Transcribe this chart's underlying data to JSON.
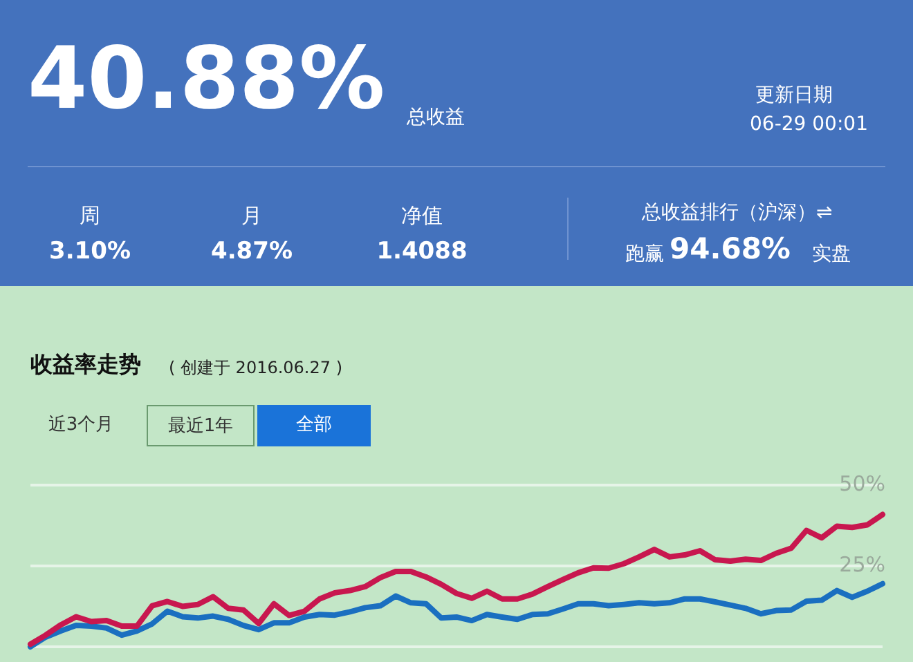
{
  "chart_data": {
    "type": "line",
    "title": "收益率走势",
    "subtitle": "( 创建于 2016.06.27 )",
    "annotations": [
      "40.88%",
      "总收益",
      "更新日期",
      "06-29 00:01",
      "周",
      "3.10%",
      "月",
      "4.87%",
      "净值",
      "1.4088",
      "总收益排行（沪深）⇌",
      "跑赢",
      "94.68%",
      "实盘",
      "近3个月",
      "最近1年",
      "全部"
    ],
    "categories": [
      null,
      null,
      null,
      null,
      null,
      null,
      null,
      null,
      null,
      null,
      null,
      null,
      null,
      null,
      null,
      null,
      null,
      null,
      null,
      null,
      null,
      null,
      null,
      null,
      null,
      null,
      null,
      null,
      null,
      null,
      null,
      null,
      null,
      null,
      null,
      null,
      null,
      null,
      null,
      null,
      null,
      null,
      null,
      null,
      null,
      null,
      null,
      null,
      null,
      null,
      null,
      null,
      null,
      null,
      null,
      null,
      null
    ],
    "series": [
      {
        "color": "#c8174f",
        "values": [
          0.8,
          3.6,
          6.8,
          9.3,
          7.8,
          8.1,
          6.4,
          6.4,
          12.7,
          14.0,
          12.5,
          13.1,
          15.5,
          11.9,
          11.4,
          7.2,
          13.3,
          9.7,
          11.0,
          14.8,
          16.7,
          17.4,
          18.6,
          21.4,
          23.3,
          23.3,
          21.6,
          19.3,
          16.5,
          15.0,
          17.2,
          14.8,
          14.8,
          16.3,
          18.6,
          20.8,
          22.9,
          24.4,
          24.3,
          25.7,
          27.8,
          30.1,
          27.8,
          28.4,
          29.7,
          26.9,
          26.5,
          27.1,
          26.7,
          28.9,
          30.5,
          36.0,
          33.7,
          37.3,
          36.9,
          37.7,
          40.9
        ]
      },
      {
        "color": "#1a6fc0",
        "values": [
          0,
          3.0,
          4.9,
          6.6,
          6.4,
          5.8,
          3.6,
          4.9,
          7.1,
          11.0,
          9.3,
          8.9,
          9.5,
          8.5,
          6.6,
          5.3,
          7.4,
          7.4,
          9.2,
          10.0,
          9.8,
          10.8,
          12.1,
          12.7,
          15.7,
          13.6,
          13.3,
          8.9,
          9.2,
          8.1,
          10.0,
          9.2,
          8.5,
          10.0,
          10.2,
          11.7,
          13.3,
          13.3,
          12.7,
          13.1,
          13.6,
          13.3,
          13.6,
          14.8,
          14.8,
          13.9,
          12.9,
          11.9,
          10.2,
          11.2,
          11.4,
          14.1,
          14.4,
          17.4,
          15.3,
          17.2,
          19.5
        ]
      }
    ],
    "ylim": [
      0,
      50
    ],
    "yticks": [
      {
        "value": 0,
        "label": null
      },
      {
        "value": 25,
        "label": "25%"
      },
      {
        "value": 50,
        "label": "50%"
      }
    ],
    "grid": "y",
    "legend": false,
    "marker": "none",
    "line_style": "solid"
  }
}
